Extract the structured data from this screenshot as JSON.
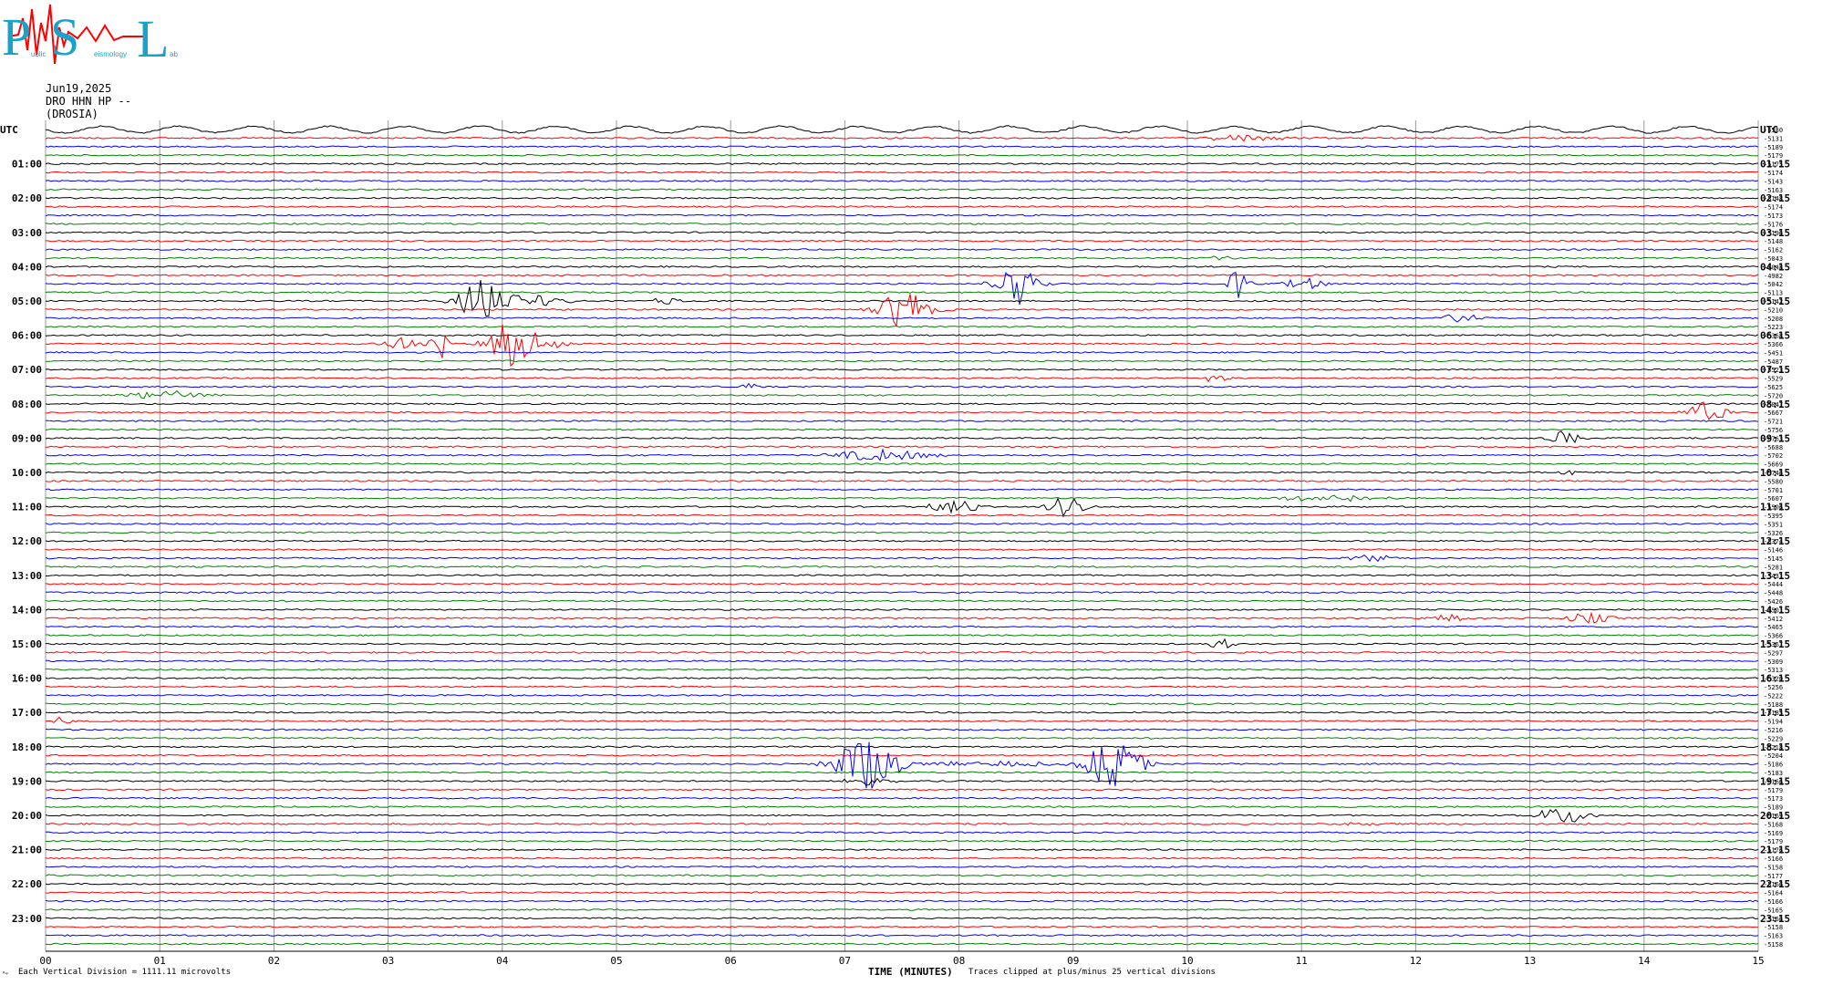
{
  "logo": {
    "big_letters": [
      "P",
      "S",
      "L"
    ],
    "small_text": [
      "ublic",
      "eismology",
      "ab"
    ]
  },
  "header": {
    "date": "Jun19,2025",
    "channel": "DRO HHN HP --",
    "station": "(DROSIA)"
  },
  "footer": {
    "scale_note": "Each Vertical Division = 1111.11 microvolts",
    "clip_note": "Traces clipped at plus/minus 25 vertical divisions",
    "corner_mark": "ᴬᵠ"
  },
  "chart_data": {
    "type": "line",
    "title": "",
    "xlabel": "TIME (MINUTES)",
    "x_range": [
      0,
      15
    ],
    "x_ticks": [
      "00",
      "01",
      "02",
      "03",
      "04",
      "05",
      "06",
      "07",
      "08",
      "09",
      "10",
      "11",
      "12",
      "13",
      "14",
      "15"
    ],
    "left_axis_top_label": "UTC",
    "right_axis_top_label": "UTC",
    "left_hour_labels": [
      "01:00",
      "02:00",
      "03:00",
      "04:00",
      "05:00",
      "06:00",
      "07:00",
      "08:00",
      "09:00",
      "10:00",
      "11:00",
      "12:00",
      "13:00",
      "14:00",
      "15:00",
      "16:00",
      "17:00",
      "18:00",
      "19:00",
      "20:00",
      "21:00",
      "22:00",
      "23:00"
    ],
    "right_hour_labels": [
      "01:15",
      "02:15",
      "03:15",
      "04:15",
      "05:15",
      "06:15",
      "07:15",
      "08:15",
      "09:15",
      "10:15",
      "11:15",
      "12:15",
      "13:15",
      "14:15",
      "15:15",
      "16:15",
      "17:15",
      "18:15",
      "19:15",
      "20:15",
      "21:15",
      "22:15",
      "23:15"
    ],
    "trace_count": 96,
    "trace_color_cycle": [
      "#000000",
      "#ff0000",
      "#0000ff",
      "#008000"
    ],
    "right_offset_labels": [
      "-5580",
      "-5131",
      "-5189",
      "-5179",
      "-5175",
      "-5174",
      "-5143",
      "-5163",
      "-5148",
      "-5174",
      "-5173",
      "-5176",
      "-5196",
      "-5148",
      "-5162",
      "-5043",
      "-5048",
      "-4982",
      "-5042",
      "-5113",
      "-5142",
      "-5210",
      "-5208",
      "-5223",
      "-5368",
      "-5366",
      "-5451",
      "-5487",
      "-5523",
      "-5529",
      "-5625",
      "-5720",
      "-5047",
      "-5667",
      "-5721",
      "-5756",
      "-5763",
      "-5688",
      "-5702",
      "-5669",
      "-5746",
      "-5580",
      "-5701",
      "-5607",
      "-5506",
      "-5395",
      "-5351",
      "-5326",
      "-5374",
      "-5146",
      "-5145",
      "-5281",
      "-5431",
      "-5444",
      "-5448",
      "-5426",
      "-5501",
      "-5412",
      "-5465",
      "-5366",
      "-5367",
      "-5297",
      "-5309",
      "-5313",
      "-5320",
      "-5256",
      "-5222",
      "-5188",
      "-5185",
      "-5194",
      "-5216",
      "-5229",
      "-5218",
      "-5204",
      "-5186",
      "-5183",
      "-5166",
      "-5179",
      "-5173",
      "-5189",
      "-5169",
      "-5168",
      "-5169",
      "-5179",
      "-5176",
      "-5166",
      "-5158",
      "-5177",
      "-5166",
      "-5164",
      "-5166",
      "-5165",
      "-5166",
      "-5158",
      "-5163",
      "-5158"
    ],
    "events": [
      {
        "trace": 1,
        "minute": 10.5,
        "amp": 4,
        "width": 0.5
      },
      {
        "trace": 15,
        "minute": 10.3,
        "amp": 3,
        "width": 0.2
      },
      {
        "trace": 18,
        "minute": 8.5,
        "amp": 28,
        "width": 0.25
      },
      {
        "trace": 18,
        "minute": 10.45,
        "amp": 20,
        "width": 0.12
      },
      {
        "trace": 18,
        "minute": 11.05,
        "amp": 6,
        "width": 0.3
      },
      {
        "trace": 20,
        "minute": 3.85,
        "amp": 24,
        "width": 0.35
      },
      {
        "trace": 20,
        "minute": 4.35,
        "amp": 6,
        "width": 0.3
      },
      {
        "trace": 20,
        "minute": 5.45,
        "amp": 4,
        "width": 0.2
      },
      {
        "trace": 21,
        "minute": 7.55,
        "amp": 22,
        "width": 0.35
      },
      {
        "trace": 22,
        "minute": 12.4,
        "amp": 5,
        "width": 0.3
      },
      {
        "trace": 25,
        "minute": 3.1,
        "amp": 8,
        "width": 0.25
      },
      {
        "trace": 25,
        "minute": 3.45,
        "amp": 18,
        "width": 0.12
      },
      {
        "trace": 25,
        "minute": 4.1,
        "amp": 26,
        "width": 0.3
      },
      {
        "trace": 25,
        "minute": 4.4,
        "amp": 5,
        "width": 0.3
      },
      {
        "trace": 29,
        "minute": 10.25,
        "amp": 5,
        "width": 0.15
      },
      {
        "trace": 30,
        "minute": 6.15,
        "amp": 5,
        "width": 0.1
      },
      {
        "trace": 31,
        "minute": 1.05,
        "amp": 5,
        "width": 0.5
      },
      {
        "trace": 33,
        "minute": 14.55,
        "amp": 12,
        "width": 0.25
      },
      {
        "trace": 36,
        "minute": 13.3,
        "amp": 8,
        "width": 0.2
      },
      {
        "trace": 38,
        "minute": 7.3,
        "amp": 6,
        "width": 0.7
      },
      {
        "trace": 40,
        "minute": 13.35,
        "amp": 4,
        "width": 0.1
      },
      {
        "trace": 43,
        "minute": 11.3,
        "amp": 4,
        "width": 0.7
      },
      {
        "trace": 44,
        "minute": 7.95,
        "amp": 8,
        "width": 0.3
      },
      {
        "trace": 44,
        "minute": 8.95,
        "amp": 12,
        "width": 0.25
      },
      {
        "trace": 50,
        "minute": 11.6,
        "amp": 4,
        "width": 0.3
      },
      {
        "trace": 57,
        "minute": 12.3,
        "amp": 4,
        "width": 0.3
      },
      {
        "trace": 57,
        "minute": 13.5,
        "amp": 6,
        "width": 0.3
      },
      {
        "trace": 60,
        "minute": 10.3,
        "amp": 6,
        "width": 0.15
      },
      {
        "trace": 69,
        "minute": 0.1,
        "amp": 4,
        "width": 0.2
      },
      {
        "trace": 74,
        "minute": 7.2,
        "amp": 30,
        "width": 0.4
      },
      {
        "trace": 74,
        "minute": 9.35,
        "amp": 26,
        "width": 0.35
      },
      {
        "trace": 74,
        "minute": 8.3,
        "amp": 3,
        "width": 0.9
      },
      {
        "trace": 76,
        "minute": 7.2,
        "amp": 4,
        "width": 0.3
      },
      {
        "trace": 80,
        "minute": 13.3,
        "amp": 9,
        "width": 0.35
      },
      {
        "trace": 81,
        "minute": 11.5,
        "amp": 2,
        "width": 0.2
      }
    ]
  }
}
